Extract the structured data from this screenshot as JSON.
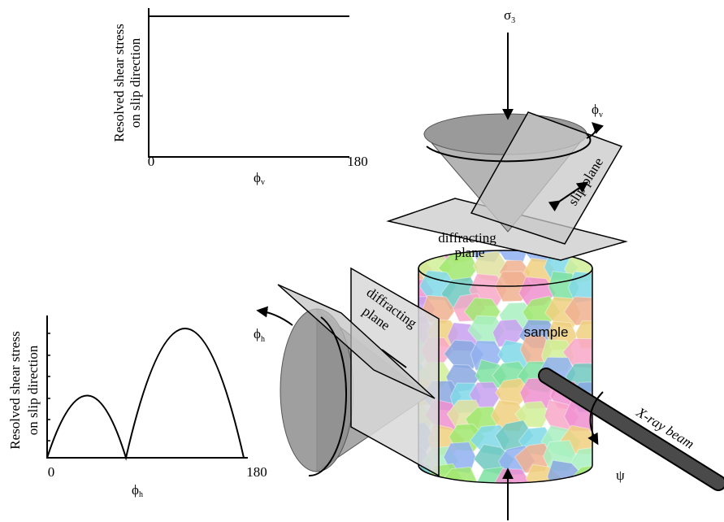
{
  "plots": [
    {
      "y_label": [
        "Resolved shear stress",
        "on slip direction"
      ],
      "x_ticks": [
        0,
        180
      ],
      "x_label": {
        "symbol": "ϕ",
        "sub": "v"
      }
    },
    {
      "y_label": [
        "Resolved shear stress",
        "on slip direction"
      ],
      "x_ticks": [
        0,
        180
      ],
      "x_label": {
        "symbol": "ϕ",
        "sub": "h"
      }
    }
  ],
  "diagram": {
    "stress": {
      "symbol": "σ",
      "sub": "3"
    },
    "rotation_v": {
      "symbol": "ϕ",
      "sub": "v"
    },
    "rotation_h": {
      "symbol": "ϕ",
      "sub": "h"
    },
    "slip_plane": "slip plane",
    "diffracting_plane_top": [
      "diffracting",
      "plane"
    ],
    "diffracting_plane_side": [
      "diffracting",
      "plane"
    ],
    "sample": "sample",
    "beam": "X-ray beam",
    "tilt": "ψ"
  }
}
